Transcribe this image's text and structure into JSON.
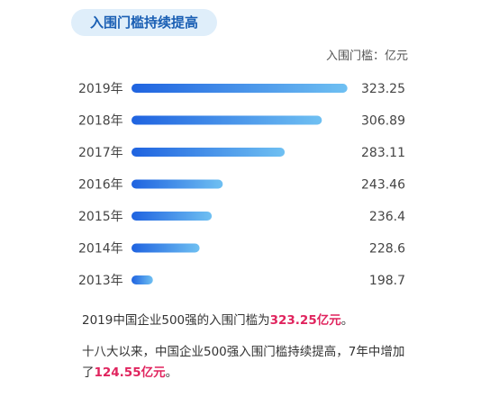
{
  "badge": "入围门槛持续提高",
  "unit_label": "入围门槛：亿元",
  "colors": {
    "accent": "#1a5fb4",
    "highlight": "#e0245e",
    "bar_start": "#1f63e0",
    "bar_end": "#6fc0f2"
  },
  "chart_data": {
    "type": "bar",
    "orientation": "horizontal",
    "categories": [
      "2019年",
      "2018年",
      "2017年",
      "2016年",
      "2015年",
      "2014年",
      "2013年"
    ],
    "values": [
      323.25,
      306.89,
      283.11,
      243.46,
      236.4,
      228.6,
      198.7
    ],
    "value_labels": [
      "323.25",
      "306.89",
      "283.11",
      "243.46",
      "236.4",
      "228.6",
      "198.7"
    ],
    "xlim": [
      185,
      324
    ],
    "grid": false,
    "legend": "none"
  },
  "summary": {
    "line1_prefix": "2019中国企业500强的入围门槛为",
    "line1_highlight": "323.25亿元",
    "line1_suffix": "。",
    "line2_prefix": "十八大以来，中国企业500强入围门槛持续提高，7年中增加了",
    "line2_highlight": "124.55亿元",
    "line2_suffix": "。"
  }
}
